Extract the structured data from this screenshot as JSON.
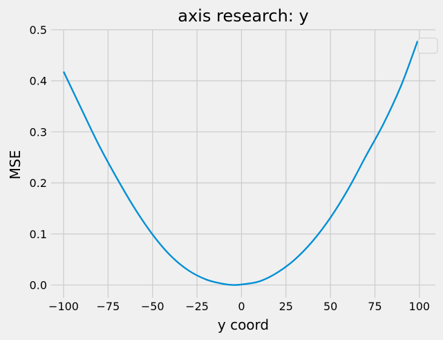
{
  "chart_data": {
    "type": "line",
    "title": "axis research: y",
    "xlabel": "y coord",
    "ylabel": "MSE",
    "xlim": [
      -107,
      109
    ],
    "ylim": [
      -0.025,
      0.5
    ],
    "x_ticks": [
      -100,
      -75,
      -50,
      -25,
      0,
      25,
      50,
      75,
      100
    ],
    "x_tick_labels": [
      "−100",
      "−75",
      "−50",
      "−25",
      "0",
      "25",
      "50",
      "75",
      "100"
    ],
    "y_ticks": [
      0.0,
      0.1,
      0.2,
      0.3,
      0.4,
      0.5
    ],
    "y_tick_labels": [
      "0.0",
      "0.1",
      "0.2",
      "0.3",
      "0.4",
      "0.5"
    ],
    "grid": true,
    "legend": {
      "position": "top-right",
      "entries": []
    },
    "colors": {
      "background": "#f0f0f0",
      "grid": "#cbcbcb",
      "line": "#008fd5"
    },
    "series": [
      {
        "x": [
          -100,
          -90,
          -80,
          -70,
          -60,
          -50,
          -40,
          -30,
          -20,
          -10,
          -4,
          0,
          10,
          20,
          30,
          40,
          50,
          60,
          70,
          80,
          90,
          99
        ],
        "values": [
          0.418,
          0.345,
          0.273,
          0.209,
          0.15,
          0.099,
          0.058,
          0.029,
          0.011,
          0.002,
          0.0,
          0.001,
          0.007,
          0.024,
          0.05,
          0.086,
          0.132,
          0.188,
          0.253,
          0.317,
          0.393,
          0.478
        ]
      }
    ]
  }
}
